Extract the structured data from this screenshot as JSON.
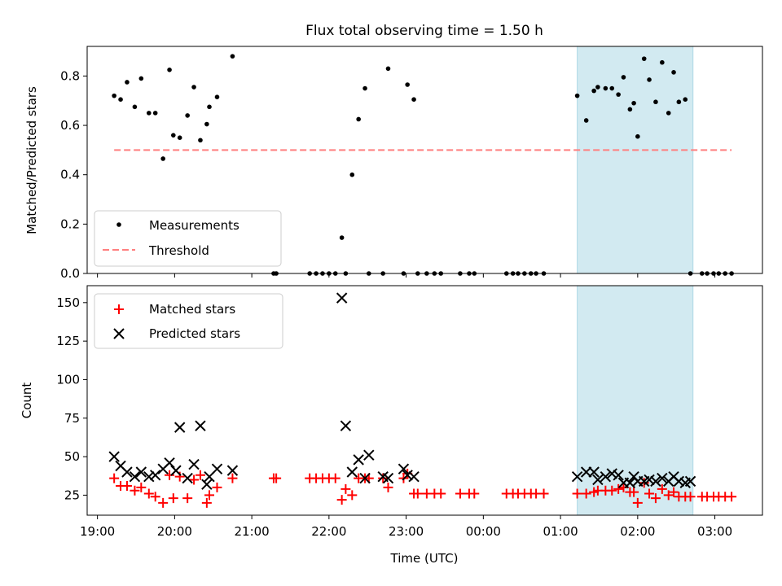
{
  "figure": {
    "title": "Flux total observing time = 1.50 h",
    "xlabel": "Time (UTC)"
  },
  "chart_data": [
    {
      "type": "scatter",
      "ylabel": "Matched/Predicted stars",
      "ylim": [
        0,
        0.92
      ],
      "xlim": [
        "18:52",
        "03:37"
      ],
      "yticks": [
        0,
        0.2,
        0.4,
        0.6,
        0.8
      ],
      "ytick_labels": [
        "0.0",
        "0.2",
        "0.4",
        "0.6",
        "0.8"
      ],
      "xticks": [
        "19:00",
        "20:00",
        "21:00",
        "22:00",
        "23:00",
        "00:00",
        "01:00",
        "02:00",
        "03:00"
      ],
      "highlight_span": [
        "01:13",
        "02:43"
      ],
      "highlight_color": "#add8e6",
      "legend_position": "lower-left",
      "series": [
        {
          "name": "Measurements",
          "marker": "dot",
          "color": "#000000",
          "x": [
            "19:13",
            "19:18",
            "19:23",
            "19:29",
            "19:34",
            "19:40",
            "19:45",
            "19:51",
            "19:56",
            "19:59",
            "20:04",
            "20:10",
            "20:15",
            "20:20",
            "20:25",
            "20:27",
            "20:33",
            "20:45",
            "21:17",
            "21:19",
            "21:45",
            "21:50",
            "21:55",
            "22:00",
            "22:05",
            "22:10",
            "22:13",
            "22:18",
            "22:23",
            "22:28",
            "22:31",
            "22:42",
            "22:46",
            "22:58",
            "23:01",
            "23:06",
            "23:09",
            "23:16",
            "23:22",
            "23:27",
            "23:42",
            "23:49",
            "23:53",
            "00:18",
            "00:23",
            "00:27",
            "00:32",
            "00:37",
            "00:41",
            "00:47",
            "01:13",
            "01:20",
            "01:26",
            "01:29",
            "01:35",
            "01:40",
            "01:45",
            "01:49",
            "01:54",
            "01:57",
            "02:00",
            "02:05",
            "02:09",
            "02:14",
            "02:19",
            "02:24",
            "02:28",
            "02:32",
            "02:37",
            "02:41",
            "02:50",
            "02:54",
            "02:59",
            "03:03",
            "03:08",
            "03:13"
          ],
          "y": [
            0.72,
            0.705,
            0.775,
            0.675,
            0.79,
            0.65,
            0.65,
            0.465,
            0.825,
            0.56,
            0.55,
            0.64,
            0.755,
            0.54,
            0.605,
            0.675,
            0.715,
            0.88,
            0,
            0,
            0,
            0,
            0,
            0,
            0,
            0.145,
            0,
            0.4,
            0.625,
            0.75,
            0,
            0,
            0.83,
            0,
            0.765,
            0.705,
            0,
            0,
            0,
            0,
            0,
            0,
            0,
            0,
            0,
            0,
            0,
            0,
            0,
            0,
            0.72,
            0.62,
            0.74,
            0.755,
            0.75,
            0.75,
            0.725,
            0.795,
            0.665,
            0.69,
            0.555,
            0.87,
            0.785,
            0.695,
            0.855,
            0.65,
            0.815,
            0.695,
            0.705,
            0,
            0,
            0,
            0,
            0,
            0,
            0
          ]
        },
        {
          "name": "Threshold",
          "style": "dashed",
          "color": "#ff7f7f",
          "x": [
            "19:13",
            "03:13"
          ],
          "y": [
            0.5,
            0.5
          ]
        }
      ]
    },
    {
      "type": "scatter",
      "ylabel": "Count",
      "ylim": [
        12,
        161
      ],
      "yticks": [
        25,
        50,
        75,
        100,
        125,
        150
      ],
      "ytick_labels": [
        "25",
        "50",
        "75",
        "100",
        "125",
        "150"
      ],
      "legend_position": "upper-left",
      "series": [
        {
          "name": "Matched stars",
          "marker": "plus",
          "color": "#ff0000",
          "x": [
            "19:13",
            "19:18",
            "19:23",
            "19:29",
            "19:34",
            "19:40",
            "19:45",
            "19:51",
            "19:56",
            "19:59",
            "20:04",
            "20:10",
            "20:15",
            "20:20",
            "20:25",
            "20:27",
            "20:33",
            "20:45",
            "21:17",
            "21:19",
            "21:45",
            "21:50",
            "21:55",
            "22:00",
            "22:05",
            "22:10",
            "22:13",
            "22:18",
            "22:23",
            "22:28",
            "22:31",
            "22:42",
            "22:46",
            "22:58",
            "23:01",
            "23:06",
            "23:09",
            "23:16",
            "23:22",
            "23:27",
            "23:42",
            "23:49",
            "23:53",
            "00:18",
            "00:23",
            "00:27",
            "00:32",
            "00:37",
            "00:41",
            "00:47",
            "01:13",
            "01:20",
            "01:26",
            "01:29",
            "01:35",
            "01:40",
            "01:45",
            "01:49",
            "01:54",
            "01:57",
            "02:00",
            "02:05",
            "02:09",
            "02:14",
            "02:19",
            "02:24",
            "02:28",
            "02:32",
            "02:37",
            "02:41",
            "02:50",
            "02:54",
            "02:59",
            "03:03",
            "03:08",
            "03:13"
          ],
          "y": [
            36,
            31,
            31,
            28,
            30,
            26,
            24,
            20,
            38,
            23,
            37,
            23,
            35,
            38,
            20,
            25,
            30,
            36,
            36,
            36,
            36,
            36,
            36,
            36,
            36,
            22,
            29,
            25,
            36,
            36,
            36,
            36,
            30,
            36,
            39,
            26,
            26,
            26,
            26,
            26,
            26,
            26,
            26,
            26,
            26,
            26,
            26,
            26,
            26,
            26,
            26,
            26,
            27,
            28,
            28,
            28,
            29,
            30,
            27,
            27,
            20,
            33,
            26,
            23,
            29,
            25,
            27,
            24,
            24,
            24,
            24,
            24,
            24,
            24,
            24,
            24
          ]
        },
        {
          "name": "Predicted stars",
          "marker": "x",
          "color": "#000000",
          "x": [
            "19:13",
            "19:18",
            "19:23",
            "19:29",
            "19:34",
            "19:40",
            "19:45",
            "19:51",
            "19:56",
            "20:01",
            "20:04",
            "20:10",
            "20:15",
            "20:20",
            "20:25",
            "20:27",
            "20:33",
            "20:45",
            "22:10",
            "22:13",
            "22:18",
            "22:23",
            "22:28",
            "22:31",
            "22:42",
            "22:46",
            "22:58",
            "23:01",
            "23:06",
            "01:13",
            "01:20",
            "01:26",
            "01:29",
            "01:35",
            "01:40",
            "01:45",
            "01:49",
            "01:54",
            "01:57",
            "02:00",
            "02:05",
            "02:09",
            "02:14",
            "02:19",
            "02:24",
            "02:28",
            "02:32",
            "02:37",
            "02:41"
          ],
          "y": [
            50,
            44,
            40,
            37,
            40,
            37,
            38,
            42,
            46,
            41,
            69,
            36,
            45,
            70,
            32,
            37,
            42,
            41,
            153,
            70,
            40,
            48,
            36,
            51,
            37,
            36,
            42,
            38,
            37,
            37,
            40,
            40,
            35,
            37,
            39,
            38,
            33,
            33,
            37,
            34,
            34,
            35,
            34,
            36,
            34,
            37,
            34,
            33,
            34
          ]
        }
      ]
    }
  ]
}
